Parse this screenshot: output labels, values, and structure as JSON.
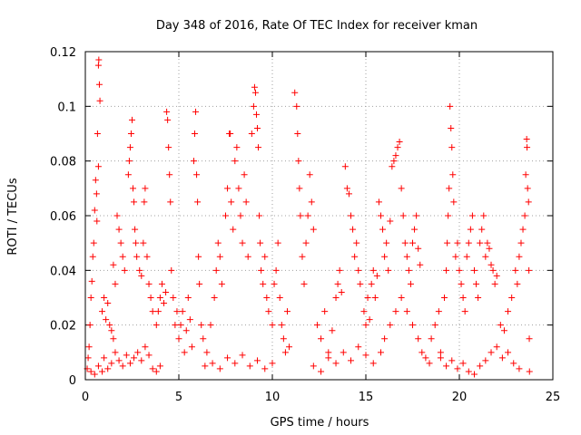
{
  "chart_data": {
    "type": "scatter",
    "title": "Day 348 of 2016, Rate Of TEC Index for receiver kman",
    "xlabel": "GPS time / hours",
    "ylabel": "ROTI / TECUs",
    "xlim": [
      0,
      25
    ],
    "ylim": [
      0,
      0.12
    ],
    "x_ticks": [
      "0",
      "5",
      "10",
      "15",
      "20",
      "25"
    ],
    "y_ticks": [
      "0",
      "0.02",
      "0.04",
      "0.06",
      "0.08",
      "0.1",
      "0.12"
    ],
    "grid": true,
    "marker": "plus",
    "color": "#ff0000",
    "series": [
      {
        "points": [
          [
            0.1,
            0.004
          ],
          [
            0.15,
            0.008
          ],
          [
            0.2,
            0.012
          ],
          [
            0.25,
            0.02
          ],
          [
            0.3,
            0.03
          ],
          [
            0.35,
            0.036
          ],
          [
            0.4,
            0.045
          ],
          [
            0.45,
            0.05
          ],
          [
            0.5,
            0.062
          ],
          [
            0.55,
            0.073
          ],
          [
            0.6,
            0.068
          ],
          [
            0.62,
            0.058
          ],
          [
            0.7,
            0.115
          ],
          [
            0.72,
            0.117
          ],
          [
            0.75,
            0.108
          ],
          [
            0.78,
            0.102
          ],
          [
            0.65,
            0.09
          ],
          [
            0.7,
            0.078
          ],
          [
            0.3,
            0.003
          ],
          [
            0.5,
            0.002
          ],
          [
            0.7,
            0.005
          ],
          [
            0.9,
            0.003
          ],
          [
            1.0,
            0.008
          ],
          [
            1.2,
            0.004
          ],
          [
            1.4,
            0.006
          ],
          [
            1.6,
            0.01
          ],
          [
            1.8,
            0.007
          ],
          [
            2.0,
            0.005
          ],
          [
            2.2,
            0.009
          ],
          [
            2.4,
            0.006
          ],
          [
            2.6,
            0.008
          ],
          [
            2.8,
            0.01
          ],
          [
            3.0,
            0.007
          ],
          [
            3.2,
            0.012
          ],
          [
            3.4,
            0.009
          ],
          [
            3.6,
            0.004
          ],
          [
            3.8,
            0.003
          ],
          [
            4.0,
            0.005
          ],
          [
            0.9,
            0.025
          ],
          [
            1.0,
            0.03
          ],
          [
            1.1,
            0.022
          ],
          [
            1.2,
            0.028
          ],
          [
            1.3,
            0.02
          ],
          [
            1.4,
            0.018
          ],
          [
            1.5,
            0.015
          ],
          [
            1.7,
            0.06
          ],
          [
            1.8,
            0.055
          ],
          [
            1.9,
            0.05
          ],
          [
            2.0,
            0.045
          ],
          [
            2.1,
            0.04
          ],
          [
            1.6,
            0.035
          ],
          [
            1.5,
            0.042
          ],
          [
            2.3,
            0.075
          ],
          [
            2.35,
            0.08
          ],
          [
            2.4,
            0.085
          ],
          [
            2.45,
            0.09
          ],
          [
            2.5,
            0.095
          ],
          [
            2.55,
            0.07
          ],
          [
            2.6,
            0.065
          ],
          [
            2.65,
            0.055
          ],
          [
            2.7,
            0.05
          ],
          [
            2.75,
            0.045
          ],
          [
            2.9,
            0.04
          ],
          [
            3.0,
            0.038
          ],
          [
            3.1,
            0.05
          ],
          [
            3.15,
            0.065
          ],
          [
            3.2,
            0.07
          ],
          [
            3.3,
            0.045
          ],
          [
            3.4,
            0.035
          ],
          [
            3.5,
            0.03
          ],
          [
            3.6,
            0.025
          ],
          [
            3.8,
            0.02
          ],
          [
            3.9,
            0.025
          ],
          [
            4.0,
            0.03
          ],
          [
            4.1,
            0.035
          ],
          [
            4.2,
            0.028
          ],
          [
            4.3,
            0.032
          ],
          [
            4.35,
            0.098
          ],
          [
            4.4,
            0.095
          ],
          [
            4.45,
            0.085
          ],
          [
            4.5,
            0.075
          ],
          [
            4.55,
            0.065
          ],
          [
            4.6,
            0.04
          ],
          [
            4.7,
            0.03
          ],
          [
            4.8,
            0.02
          ],
          [
            4.9,
            0.025
          ],
          [
            5.0,
            0.015
          ],
          [
            5.1,
            0.02
          ],
          [
            5.2,
            0.025
          ],
          [
            5.3,
            0.01
          ],
          [
            5.4,
            0.018
          ],
          [
            5.5,
            0.03
          ],
          [
            5.6,
            0.022
          ],
          [
            5.7,
            0.012
          ],
          [
            5.8,
            0.08
          ],
          [
            5.85,
            0.09
          ],
          [
            5.9,
            0.098
          ],
          [
            5.95,
            0.075
          ],
          [
            6.0,
            0.065
          ],
          [
            6.05,
            0.045
          ],
          [
            6.1,
            0.035
          ],
          [
            6.2,
            0.02
          ],
          [
            6.3,
            0.015
          ],
          [
            6.5,
            0.01
          ],
          [
            6.7,
            0.02
          ],
          [
            6.9,
            0.03
          ],
          [
            7.0,
            0.04
          ],
          [
            7.1,
            0.05
          ],
          [
            7.2,
            0.045
          ],
          [
            7.3,
            0.035
          ],
          [
            7.5,
            0.06
          ],
          [
            7.6,
            0.07
          ],
          [
            7.7,
            0.09
          ],
          [
            7.75,
            0.09
          ],
          [
            7.8,
            0.065
          ],
          [
            7.9,
            0.055
          ],
          [
            6.4,
            0.005
          ],
          [
            6.8,
            0.006
          ],
          [
            7.2,
            0.004
          ],
          [
            7.6,
            0.008
          ],
          [
            8.0,
            0.006
          ],
          [
            8.4,
            0.009
          ],
          [
            8.8,
            0.005
          ],
          [
            9.2,
            0.007
          ],
          [
            9.6,
            0.004
          ],
          [
            10.0,
            0.006
          ],
          [
            8.0,
            0.08
          ],
          [
            8.1,
            0.085
          ],
          [
            8.2,
            0.07
          ],
          [
            8.3,
            0.06
          ],
          [
            8.4,
            0.05
          ],
          [
            8.5,
            0.075
          ],
          [
            8.6,
            0.065
          ],
          [
            8.7,
            0.045
          ],
          [
            8.9,
            0.09
          ],
          [
            9.0,
            0.1
          ],
          [
            9.05,
            0.107
          ],
          [
            9.1,
            0.105
          ],
          [
            9.15,
            0.097
          ],
          [
            9.2,
            0.092
          ],
          [
            9.25,
            0.085
          ],
          [
            9.3,
            0.06
          ],
          [
            9.35,
            0.05
          ],
          [
            9.4,
            0.04
          ],
          [
            9.5,
            0.035
          ],
          [
            9.6,
            0.045
          ],
          [
            9.7,
            0.03
          ],
          [
            9.8,
            0.025
          ],
          [
            10.0,
            0.02
          ],
          [
            10.1,
            0.035
          ],
          [
            10.2,
            0.04
          ],
          [
            10.3,
            0.05
          ],
          [
            10.4,
            0.03
          ],
          [
            10.5,
            0.02
          ],
          [
            10.6,
            0.015
          ],
          [
            10.7,
            0.01
          ],
          [
            10.8,
            0.025
          ],
          [
            10.9,
            0.012
          ],
          [
            11.2,
            0.105
          ],
          [
            11.3,
            0.1
          ],
          [
            11.35,
            0.09
          ],
          [
            11.4,
            0.08
          ],
          [
            11.45,
            0.07
          ],
          [
            11.5,
            0.06
          ],
          [
            11.6,
            0.045
          ],
          [
            11.7,
            0.035
          ],
          [
            11.8,
            0.05
          ],
          [
            11.9,
            0.06
          ],
          [
            12.0,
            0.075
          ],
          [
            12.1,
            0.065
          ],
          [
            12.2,
            0.055
          ],
          [
            12.4,
            0.02
          ],
          [
            12.6,
            0.015
          ],
          [
            12.8,
            0.025
          ],
          [
            13.0,
            0.01
          ],
          [
            13.2,
            0.018
          ],
          [
            13.4,
            0.03
          ],
          [
            13.5,
            0.035
          ],
          [
            13.6,
            0.04
          ],
          [
            13.7,
            0.032
          ],
          [
            13.9,
            0.078
          ],
          [
            14.0,
            0.07
          ],
          [
            14.1,
            0.068
          ],
          [
            14.2,
            0.06
          ],
          [
            14.3,
            0.055
          ],
          [
            14.4,
            0.045
          ],
          [
            14.5,
            0.05
          ],
          [
            14.6,
            0.04
          ],
          [
            14.7,
            0.035
          ],
          [
            12.2,
            0.005
          ],
          [
            12.6,
            0.003
          ],
          [
            13.0,
            0.008
          ],
          [
            13.4,
            0.006
          ],
          [
            13.8,
            0.01
          ],
          [
            14.2,
            0.007
          ],
          [
            14.6,
            0.012
          ],
          [
            15.0,
            0.009
          ],
          [
            15.4,
            0.006
          ],
          [
            15.8,
            0.01
          ],
          [
            14.9,
            0.025
          ],
          [
            15.0,
            0.02
          ],
          [
            15.1,
            0.03
          ],
          [
            15.2,
            0.022
          ],
          [
            15.3,
            0.035
          ],
          [
            15.4,
            0.04
          ],
          [
            15.5,
            0.03
          ],
          [
            15.6,
            0.038
          ],
          [
            15.7,
            0.065
          ],
          [
            15.8,
            0.06
          ],
          [
            15.9,
            0.055
          ],
          [
            16.0,
            0.045
          ],
          [
            16.1,
            0.05
          ],
          [
            16.2,
            0.04
          ],
          [
            16.3,
            0.058
          ],
          [
            16.4,
            0.078
          ],
          [
            16.5,
            0.08
          ],
          [
            16.6,
            0.082
          ],
          [
            16.7,
            0.085
          ],
          [
            16.8,
            0.087
          ],
          [
            16.9,
            0.07
          ],
          [
            17.0,
            0.06
          ],
          [
            17.1,
            0.05
          ],
          [
            17.2,
            0.045
          ],
          [
            17.3,
            0.04
          ],
          [
            17.4,
            0.035
          ],
          [
            17.5,
            0.05
          ],
          [
            17.6,
            0.055
          ],
          [
            17.7,
            0.06
          ],
          [
            17.8,
            0.048
          ],
          [
            17.9,
            0.042
          ],
          [
            16.0,
            0.015
          ],
          [
            16.3,
            0.02
          ],
          [
            16.6,
            0.025
          ],
          [
            16.9,
            0.03
          ],
          [
            17.2,
            0.025
          ],
          [
            17.5,
            0.02
          ],
          [
            17.8,
            0.015
          ],
          [
            18.0,
            0.01
          ],
          [
            18.2,
            0.008
          ],
          [
            18.4,
            0.006
          ],
          [
            18.5,
            0.015
          ],
          [
            18.7,
            0.02
          ],
          [
            18.9,
            0.025
          ],
          [
            19.0,
            0.01
          ],
          [
            19.2,
            0.03
          ],
          [
            19.3,
            0.04
          ],
          [
            19.35,
            0.05
          ],
          [
            19.4,
            0.06
          ],
          [
            19.45,
            0.07
          ],
          [
            19.5,
            0.1
          ],
          [
            19.55,
            0.092
          ],
          [
            19.6,
            0.085
          ],
          [
            19.65,
            0.075
          ],
          [
            19.7,
            0.065
          ],
          [
            19.8,
            0.045
          ],
          [
            19.9,
            0.05
          ],
          [
            20.0,
            0.04
          ],
          [
            20.1,
            0.035
          ],
          [
            20.2,
            0.03
          ],
          [
            20.3,
            0.025
          ],
          [
            20.4,
            0.045
          ],
          [
            20.5,
            0.05
          ],
          [
            20.6,
            0.055
          ],
          [
            20.7,
            0.06
          ],
          [
            20.8,
            0.04
          ],
          [
            20.9,
            0.035
          ],
          [
            21.0,
            0.03
          ],
          [
            21.1,
            0.05
          ],
          [
            21.2,
            0.055
          ],
          [
            21.3,
            0.06
          ],
          [
            21.4,
            0.045
          ],
          [
            21.5,
            0.05
          ],
          [
            21.6,
            0.048
          ],
          [
            21.7,
            0.042
          ],
          [
            21.8,
            0.04
          ],
          [
            21.9,
            0.035
          ],
          [
            22.0,
            0.038
          ],
          [
            19.0,
            0.008
          ],
          [
            19.3,
            0.005
          ],
          [
            19.6,
            0.007
          ],
          [
            19.9,
            0.004
          ],
          [
            20.2,
            0.006
          ],
          [
            20.5,
            0.003
          ],
          [
            20.8,
            0.002
          ],
          [
            21.1,
            0.005
          ],
          [
            21.4,
            0.007
          ],
          [
            21.7,
            0.01
          ],
          [
            22.0,
            0.012
          ],
          [
            22.3,
            0.008
          ],
          [
            22.6,
            0.01
          ],
          [
            22.9,
            0.006
          ],
          [
            23.2,
            0.004
          ],
          [
            22.2,
            0.02
          ],
          [
            22.4,
            0.018
          ],
          [
            22.6,
            0.025
          ],
          [
            22.8,
            0.03
          ],
          [
            23.0,
            0.04
          ],
          [
            23.1,
            0.035
          ],
          [
            23.2,
            0.045
          ],
          [
            23.3,
            0.05
          ],
          [
            23.4,
            0.055
          ],
          [
            23.5,
            0.06
          ],
          [
            23.55,
            0.075
          ],
          [
            23.6,
            0.088
          ],
          [
            23.62,
            0.085
          ],
          [
            23.65,
            0.07
          ],
          [
            23.7,
            0.065
          ],
          [
            23.72,
            0.04
          ],
          [
            23.74,
            0.015
          ],
          [
            23.75,
            0.003
          ]
        ]
      }
    ]
  }
}
